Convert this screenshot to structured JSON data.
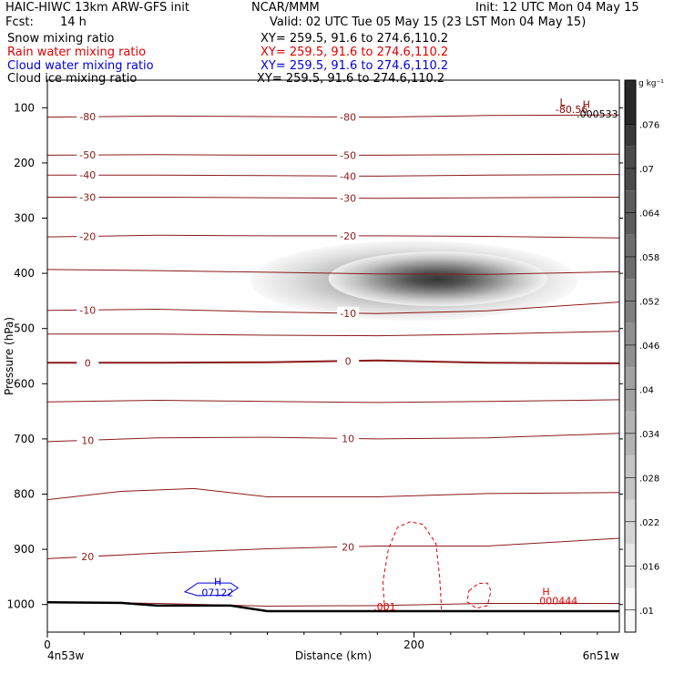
{
  "header": {
    "model": "HAIC-HIWC 13km ARW-GFS init",
    "org": "NCAR/MMM",
    "init": "Init: 12 UTC Mon 04 May 15",
    "fcst_label": "Fcst:",
    "fcst_value": "14 h",
    "valid": "Valid: 02 UTC Tue 05 May 15 (23 LST Mon 04 May 15)",
    "fields": [
      {
        "name": "Snow mixing ratio",
        "xy": "XY= 259.5, 91.6 to 274.6,110.2",
        "color": "#000000"
      },
      {
        "name": "Rain water mixing ratio",
        "xy": "XY= 259.5, 91.6 to 274.6,110.2",
        "color": "#e00000"
      },
      {
        "name": "Cloud water mixing ratio",
        "xy": "XY= 259.5, 91.6 to 274.6,110.2",
        "color": "#0000dd"
      },
      {
        "name": "Cloud ice mixing ratio",
        "xy": "XY= 259.5, 91.6 to 274.6,110.2",
        "color": "#000000"
      }
    ]
  },
  "chart_data": {
    "type": "heatmap",
    "title": "Snow mixing ratio",
    "xlabel": "Distance (km)",
    "ylabel": "Pressure (hPa)",
    "xlim": [
      0,
      312
    ],
    "ylim": [
      1050,
      50
    ],
    "xticks": [
      0,
      200
    ],
    "yticks": [
      100,
      200,
      300,
      400,
      500,
      600,
      700,
      800,
      900,
      1000
    ],
    "x_endpoint_labels": [
      "4n53w",
      "6n51w"
    ],
    "colorbar": {
      "unit": "g kg⁻¹",
      "ticks": [
        ".01",
        ".016",
        ".022",
        ".028",
        ".034",
        ".04",
        ".046",
        ".052",
        ".058",
        ".064",
        ".07",
        ".076"
      ]
    },
    "temperature_contours": [
      {
        "label": "-80",
        "points": [
          [
            0,
            117
          ],
          [
            60,
            115
          ],
          [
            120,
            116
          ],
          [
            180,
            117
          ],
          [
            240,
            114
          ],
          [
            312,
            113
          ]
        ]
      },
      {
        "label": "-50",
        "points": [
          [
            0,
            186
          ],
          [
            60,
            185
          ],
          [
            120,
            186
          ],
          [
            180,
            186
          ],
          [
            240,
            185
          ],
          [
            312,
            184
          ]
        ]
      },
      {
        "label": "-40",
        "points": [
          [
            0,
            222
          ],
          [
            60,
            222
          ],
          [
            120,
            223
          ],
          [
            180,
            224
          ],
          [
            240,
            222
          ],
          [
            312,
            221
          ]
        ]
      },
      {
        "label": "-30",
        "points": [
          [
            0,
            262
          ],
          [
            60,
            262
          ],
          [
            120,
            263
          ],
          [
            180,
            264
          ],
          [
            240,
            263
          ],
          [
            312,
            262
          ]
        ]
      },
      {
        "label": "-20",
        "points": [
          [
            0,
            334
          ],
          [
            60,
            331
          ],
          [
            120,
            332
          ],
          [
            180,
            332
          ],
          [
            240,
            333
          ],
          [
            312,
            336
          ]
        ]
      },
      {
        "label": "",
        "points": [
          [
            0,
            393
          ],
          [
            60,
            395
          ],
          [
            120,
            398
          ],
          [
            180,
            401
          ],
          [
            240,
            402
          ],
          [
            312,
            397
          ]
        ]
      },
      {
        "label": "-10",
        "points": [
          [
            0,
            467
          ],
          [
            60,
            465
          ],
          [
            120,
            470
          ],
          [
            180,
            473
          ],
          [
            240,
            468
          ],
          [
            312,
            452
          ]
        ]
      },
      {
        "label": "",
        "points": [
          [
            0,
            510
          ],
          [
            60,
            510
          ],
          [
            120,
            512
          ],
          [
            180,
            513
          ],
          [
            240,
            510
          ],
          [
            312,
            505
          ]
        ]
      },
      {
        "label": "0",
        "points": [
          [
            0,
            562
          ],
          [
            60,
            562
          ],
          [
            120,
            561
          ],
          [
            180,
            558
          ],
          [
            240,
            562
          ],
          [
            312,
            563
          ]
        ]
      },
      {
        "label": "",
        "points": [
          [
            0,
            633
          ],
          [
            60,
            630
          ],
          [
            120,
            632
          ],
          [
            180,
            634
          ],
          [
            240,
            632
          ],
          [
            312,
            629
          ]
        ]
      },
      {
        "label": "10",
        "points": [
          [
            0,
            705
          ],
          [
            60,
            698
          ],
          [
            120,
            697
          ],
          [
            180,
            700
          ],
          [
            240,
            698
          ],
          [
            312,
            690
          ]
        ]
      },
      {
        "label": "",
        "points": [
          [
            0,
            810
          ],
          [
            40,
            795
          ],
          [
            80,
            790
          ],
          [
            120,
            805
          ],
          [
            180,
            805
          ],
          [
            240,
            799
          ],
          [
            312,
            797
          ]
        ]
      },
      {
        "label": "20",
        "points": [
          [
            0,
            917
          ],
          [
            60,
            907
          ],
          [
            120,
            899
          ],
          [
            180,
            894
          ],
          [
            240,
            894
          ],
          [
            312,
            880
          ]
        ]
      },
      {
        "label": "",
        "points": [
          [
            0,
            995
          ],
          [
            60,
            998
          ],
          [
            120,
            1003
          ],
          [
            180,
            1002
          ],
          [
            240,
            998
          ],
          [
            312,
            998
          ]
        ]
      }
    ],
    "snow_max": {
      "x": [
        190,
        230
      ],
      "p": [
        395,
        425
      ],
      "value": ">0.076"
    },
    "labels": [
      {
        "text": "L",
        "x": 281,
        "p": 96,
        "color": "#8b0000"
      },
      {
        "text": "H",
        "x": 294,
        "p": 100,
        "color": "#8b0000"
      },
      {
        "text": "-80.56",
        "x": 286,
        "p": 109,
        "color": "#8b0000"
      },
      {
        "text": ".000533",
        "x": 300,
        "p": 118,
        "color": "#000000"
      },
      {
        "text": "H",
        "x": 93,
        "p": 965,
        "color": "#0000dd"
      },
      {
        "text": ".07122",
        "x": 92,
        "p": 985,
        "color": "#0000dd"
      },
      {
        "text": "H",
        "x": 272,
        "p": 983,
        "color": "#e00000"
      },
      {
        "text": ".000444",
        "x": 278,
        "p": 1000,
        "color": "#e00000"
      },
      {
        "text": ".001",
        "x": 184,
        "p": 1010,
        "color": "#e00000"
      }
    ],
    "rain_contours": [
      {
        "closed": false,
        "points": [
          [
            184,
            1010
          ],
          [
            183,
            960
          ],
          [
            186,
            900
          ],
          [
            191,
            860
          ],
          [
            198,
            850
          ],
          [
            205,
            855
          ],
          [
            212,
            890
          ],
          [
            214,
            950
          ],
          [
            215,
            1010
          ]
        ]
      },
      {
        "closed": true,
        "points": [
          [
            230,
            975
          ],
          [
            235,
            962
          ],
          [
            240,
            961
          ],
          [
            242,
            975
          ],
          [
            240,
            1002
          ],
          [
            234,
            1007
          ],
          [
            229,
            995
          ]
        ]
      }
    ],
    "cloud_water_contour": {
      "closed": true,
      "points": [
        [
          75,
          977
        ],
        [
          82,
          961
        ],
        [
          100,
          961
        ],
        [
          104,
          970
        ],
        [
          98,
          983
        ],
        [
          82,
          984
        ]
      ]
    },
    "terrain": [
      [
        0,
        996
      ],
      [
        40,
        997
      ],
      [
        60,
        1002
      ],
      [
        100,
        1002
      ],
      [
        120,
        1012
      ],
      [
        180,
        1012
      ],
      [
        240,
        1012
      ],
      [
        312,
        1012
      ]
    ]
  }
}
